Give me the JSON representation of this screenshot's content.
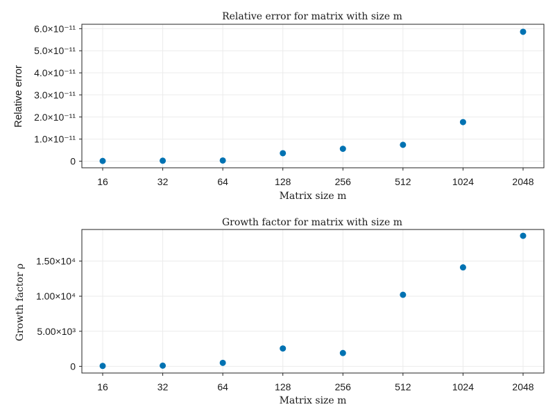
{
  "chart_data": [
    {
      "type": "scatter",
      "title": "Relative error for matrix with size m",
      "title_math": "m",
      "xlabel": "Matrix size m",
      "ylabel": "Relative error",
      "x_categories": [
        "16",
        "32",
        "64",
        "128",
        "256",
        "512",
        "1024",
        "2048"
      ],
      "y_ticks": [
        0,
        1e-11,
        2e-11,
        3e-11,
        4e-11,
        5e-11,
        6e-11
      ],
      "y_tick_labels": [
        "0",
        "1.0×10⁻¹¹",
        "2.0×10⁻¹¹",
        "3.0×10⁻¹¹",
        "4.0×10⁻¹¹",
        "5.0×10⁻¹¹",
        "6.0×10⁻¹¹"
      ],
      "ylim": [
        -3e-12,
        6.2e-11
      ],
      "grid": true,
      "values": [
        1e-13,
        2e-13,
        3e-13,
        3.6e-12,
        5.6e-12,
        7.4e-12,
        1.77e-11,
        5.86e-11
      ],
      "marker_color": "#0072B2"
    },
    {
      "type": "scatter",
      "title": "Growth factor for matrix with size m",
      "xlabel": "Matrix size m",
      "ylabel": "Growth factor ρ",
      "x_categories": [
        "16",
        "32",
        "64",
        "128",
        "256",
        "512",
        "1024",
        "2048"
      ],
      "y_ticks": [
        0,
        5000,
        10000,
        15000
      ],
      "y_tick_labels": [
        "0",
        "5.00×10³",
        "1.00×10⁴",
        "1.50×10⁴"
      ],
      "ylim": [
        -950,
        19500
      ],
      "grid": true,
      "values": [
        60,
        100,
        500,
        2550,
        1900,
        10200,
        14100,
        18600
      ],
      "marker_color": "#0072B2"
    }
  ]
}
